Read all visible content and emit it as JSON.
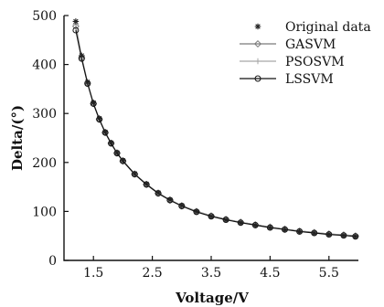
{
  "chart_data": {
    "type": "line",
    "xlabel": "Voltage/V",
    "ylabel": "Delta/(°)",
    "xlim": [
      1.0,
      6.0
    ],
    "ylim": [
      0,
      500
    ],
    "xticks": [
      1.5,
      2.5,
      3.5,
      4.5,
      5.5
    ],
    "yticks": [
      0,
      100,
      200,
      300,
      400,
      500
    ],
    "xtick_labels": [
      "1.5",
      "2.5",
      "3.5",
      "4.5",
      "5.5"
    ],
    "ytick_labels": [
      "0",
      "100",
      "200",
      "300",
      "400",
      "500"
    ],
    "legend_position": "top-right",
    "grid": false,
    "x": [
      1.2,
      1.3,
      1.4,
      1.5,
      1.6,
      1.7,
      1.8,
      1.9,
      2.0,
      2.2,
      2.4,
      2.6,
      2.8,
      3.0,
      3.25,
      3.5,
      3.75,
      4.0,
      4.25,
      4.5,
      4.75,
      5.0,
      5.25,
      5.5,
      5.75,
      5.95
    ],
    "series": [
      {
        "name": "Original data",
        "marker": "star",
        "color": "#222222",
        "values": [
          488,
          418,
          364,
          322,
          290,
          262,
          240,
          220,
          204,
          177,
          156,
          138,
          124,
          112,
          100,
          90,
          83,
          77,
          72,
          67,
          63,
          59,
          56,
          53,
          51,
          49
        ]
      },
      {
        "name": "GASVM",
        "marker": "diamond",
        "color": "#7a7a7a",
        "values": [
          478,
          414,
          362,
          320,
          288,
          261,
          239,
          219,
          203,
          176,
          155,
          137,
          123,
          111,
          100,
          91,
          84,
          78,
          73,
          68,
          64,
          60,
          57,
          54,
          52,
          50
        ]
      },
      {
        "name": "PSOSVM",
        "marker": "plus",
        "color": "#a6a6a6",
        "values": [
          482,
          416,
          363,
          321,
          289,
          262,
          240,
          220,
          204,
          177,
          156,
          138,
          124,
          112,
          101,
          91,
          84,
          78,
          73,
          68,
          64,
          60,
          57,
          54,
          52,
          50
        ]
      },
      {
        "name": "LSSVM",
        "marker": "circle",
        "color": "#111111",
        "values": [
          470,
          412,
          361,
          320,
          288,
          261,
          239,
          219,
          203,
          176,
          155,
          137,
          123,
          111,
          99,
          90,
          83,
          77,
          72,
          67,
          63,
          59,
          56,
          53,
          51,
          49
        ]
      }
    ]
  }
}
